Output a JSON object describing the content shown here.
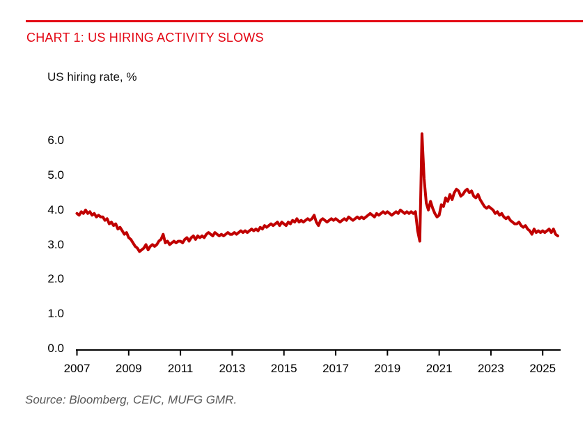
{
  "header": {
    "title": "CHART 1: US HIRING ACTIVITY SLOWS",
    "title_color": "#e30613",
    "rule_color": "#e30613"
  },
  "footer": {
    "source": "Source: Bloomberg, CEIC, MUFG GMR."
  },
  "chart_data": {
    "type": "line",
    "title": "US hiring rate, %",
    "xlabel": "",
    "ylabel": "US hiring rate, %",
    "grid": false,
    "legend": "none",
    "ylim": [
      0.0,
      6.5
    ],
    "y_ticks": [
      "6.0",
      "5.0",
      "4.0",
      "3.0",
      "2.0",
      "1.0",
      "0.0"
    ],
    "x_ticks": [
      2007,
      2009,
      2011,
      2013,
      2015,
      2017,
      2019,
      2021,
      2023,
      2025
    ],
    "x_range": [
      "Jan 2007",
      "Aug 2025"
    ],
    "series": [
      {
        "name": "US hiring rate, %",
        "color": "#c00000",
        "frequency": "monthly",
        "start_year": 2007,
        "start_month": 1,
        "values": [
          3.9,
          3.85,
          3.95,
          3.9,
          4.0,
          3.9,
          3.95,
          3.85,
          3.9,
          3.8,
          3.85,
          3.8,
          3.8,
          3.7,
          3.75,
          3.6,
          3.65,
          3.55,
          3.6,
          3.45,
          3.5,
          3.4,
          3.3,
          3.35,
          3.2,
          3.15,
          3.05,
          2.95,
          2.9,
          2.8,
          2.85,
          2.9,
          3.0,
          2.85,
          2.95,
          3.0,
          2.95,
          3.0,
          3.1,
          3.15,
          3.3,
          3.05,
          3.1,
          3.0,
          3.05,
          3.1,
          3.05,
          3.1,
          3.1,
          3.05,
          3.15,
          3.2,
          3.1,
          3.2,
          3.25,
          3.15,
          3.25,
          3.2,
          3.25,
          3.2,
          3.3,
          3.35,
          3.3,
          3.25,
          3.35,
          3.3,
          3.25,
          3.3,
          3.25,
          3.3,
          3.35,
          3.3,
          3.3,
          3.35,
          3.3,
          3.35,
          3.4,
          3.35,
          3.4,
          3.35,
          3.4,
          3.45,
          3.4,
          3.45,
          3.4,
          3.5,
          3.45,
          3.55,
          3.5,
          3.55,
          3.6,
          3.55,
          3.6,
          3.65,
          3.55,
          3.65,
          3.6,
          3.55,
          3.65,
          3.6,
          3.7,
          3.65,
          3.75,
          3.65,
          3.7,
          3.65,
          3.7,
          3.75,
          3.7,
          3.75,
          3.85,
          3.65,
          3.55,
          3.7,
          3.75,
          3.7,
          3.65,
          3.7,
          3.75,
          3.7,
          3.75,
          3.7,
          3.65,
          3.7,
          3.75,
          3.7,
          3.8,
          3.75,
          3.7,
          3.75,
          3.8,
          3.75,
          3.8,
          3.75,
          3.8,
          3.85,
          3.9,
          3.85,
          3.8,
          3.9,
          3.85,
          3.9,
          3.95,
          3.9,
          3.95,
          3.9,
          3.85,
          3.9,
          3.95,
          3.9,
          4.0,
          3.95,
          3.9,
          3.95,
          3.9,
          3.95,
          3.9,
          3.95,
          3.4,
          3.1,
          6.2,
          4.9,
          4.2,
          4.0,
          4.25,
          4.05,
          3.9,
          3.8,
          3.85,
          4.15,
          4.1,
          4.35,
          4.25,
          4.45,
          4.3,
          4.5,
          4.6,
          4.55,
          4.4,
          4.45,
          4.55,
          4.6,
          4.5,
          4.55,
          4.4,
          4.35,
          4.45,
          4.3,
          4.2,
          4.1,
          4.05,
          4.1,
          4.05,
          4.0,
          3.9,
          3.95,
          3.85,
          3.9,
          3.8,
          3.75,
          3.8,
          3.7,
          3.65,
          3.6,
          3.6,
          3.65,
          3.55,
          3.5,
          3.55,
          3.45,
          3.4,
          3.3,
          3.45,
          3.35,
          3.4,
          3.35,
          3.4,
          3.35,
          3.4,
          3.45,
          3.35,
          3.45,
          3.3,
          3.25
        ]
      }
    ]
  }
}
